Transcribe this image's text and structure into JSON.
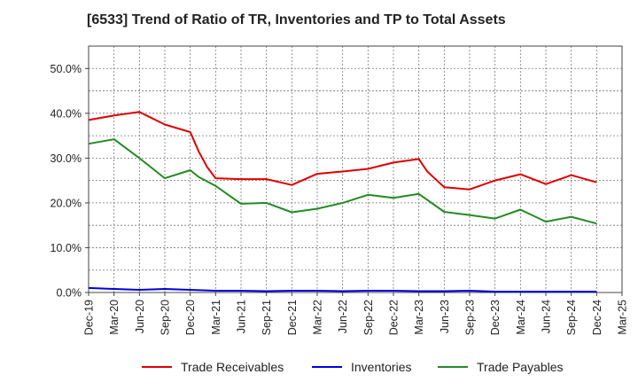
{
  "chart_data": {
    "type": "line",
    "title": "[6533]  Trend of Ratio of TR, Inventories and TP to Total Assets",
    "xlabel": "",
    "ylabel": "",
    "ylim": [
      0,
      55
    ],
    "grid": true,
    "legend_position": "bottom",
    "x_ticks": [
      "Dec-19",
      "Mar-20",
      "Jun-20",
      "Sep-20",
      "Dec-20",
      "Mar-21",
      "Jun-21",
      "Sep-21",
      "Dec-21",
      "Mar-22",
      "Jun-22",
      "Sep-22",
      "Dec-22",
      "Mar-23",
      "Jun-23",
      "Sep-23",
      "Dec-23",
      "Mar-24",
      "Jun-24",
      "Sep-24",
      "Dec-24",
      "Mar-25"
    ],
    "y_ticks": [
      0,
      10,
      20,
      30,
      40,
      50
    ],
    "y_tick_labels": [
      "0.0%",
      "10.0%",
      "20.0%",
      "30.0%",
      "40.0%",
      "50.0%"
    ],
    "series": [
      {
        "name": "Trade Receivables",
        "color": "#e00000",
        "x": [
          "2019-12",
          "2020-03",
          "2020-06",
          "2020-09",
          "2020-12",
          "2021-01",
          "2021-02",
          "2021-03",
          "2021-06",
          "2021-09",
          "2021-12",
          "2022-03",
          "2022-06",
          "2022-09",
          "2022-12",
          "2023-03",
          "2023-04",
          "2023-06",
          "2023-09",
          "2023-12",
          "2024-03",
          "2024-06",
          "2024-09",
          "2024-12"
        ],
        "values": [
          38.5,
          39.5,
          40.3,
          37.5,
          35.8,
          31.5,
          28.0,
          25.5,
          25.3,
          25.3,
          24.0,
          26.5,
          27.0,
          27.6,
          29.0,
          29.8,
          27.0,
          23.5,
          23.0,
          25.0,
          26.4,
          24.2,
          26.2,
          24.6
        ]
      },
      {
        "name": "Inventories",
        "color": "#0000dd",
        "x": [
          "2019-12",
          "2020-03",
          "2020-06",
          "2020-09",
          "2020-12",
          "2021-03",
          "2021-06",
          "2021-09",
          "2021-12",
          "2022-03",
          "2022-06",
          "2022-09",
          "2022-12",
          "2023-03",
          "2023-06",
          "2023-09",
          "2023-12",
          "2024-03",
          "2024-06",
          "2024-09",
          "2024-12"
        ],
        "values": [
          1.0,
          0.8,
          0.6,
          0.8,
          0.6,
          0.4,
          0.4,
          0.3,
          0.4,
          0.4,
          0.3,
          0.4,
          0.4,
          0.3,
          0.3,
          0.4,
          0.2,
          0.2,
          0.2,
          0.2,
          0.2
        ]
      },
      {
        "name": "Trade Payables",
        "color": "#228b22",
        "x": [
          "2019-12",
          "2020-03",
          "2020-06",
          "2020-09",
          "2020-12",
          "2021-01",
          "2021-03",
          "2021-06",
          "2021-09",
          "2021-12",
          "2022-03",
          "2022-06",
          "2022-09",
          "2022-12",
          "2023-03",
          "2023-06",
          "2023-09",
          "2023-12",
          "2024-03",
          "2024-06",
          "2024-09",
          "2024-12"
        ],
        "values": [
          33.2,
          34.2,
          30.0,
          25.5,
          27.3,
          25.8,
          23.8,
          19.8,
          20.0,
          17.9,
          18.7,
          20.0,
          21.8,
          21.1,
          22.0,
          18.0,
          17.3,
          16.5,
          18.5,
          15.8,
          16.9,
          15.4
        ]
      }
    ]
  }
}
